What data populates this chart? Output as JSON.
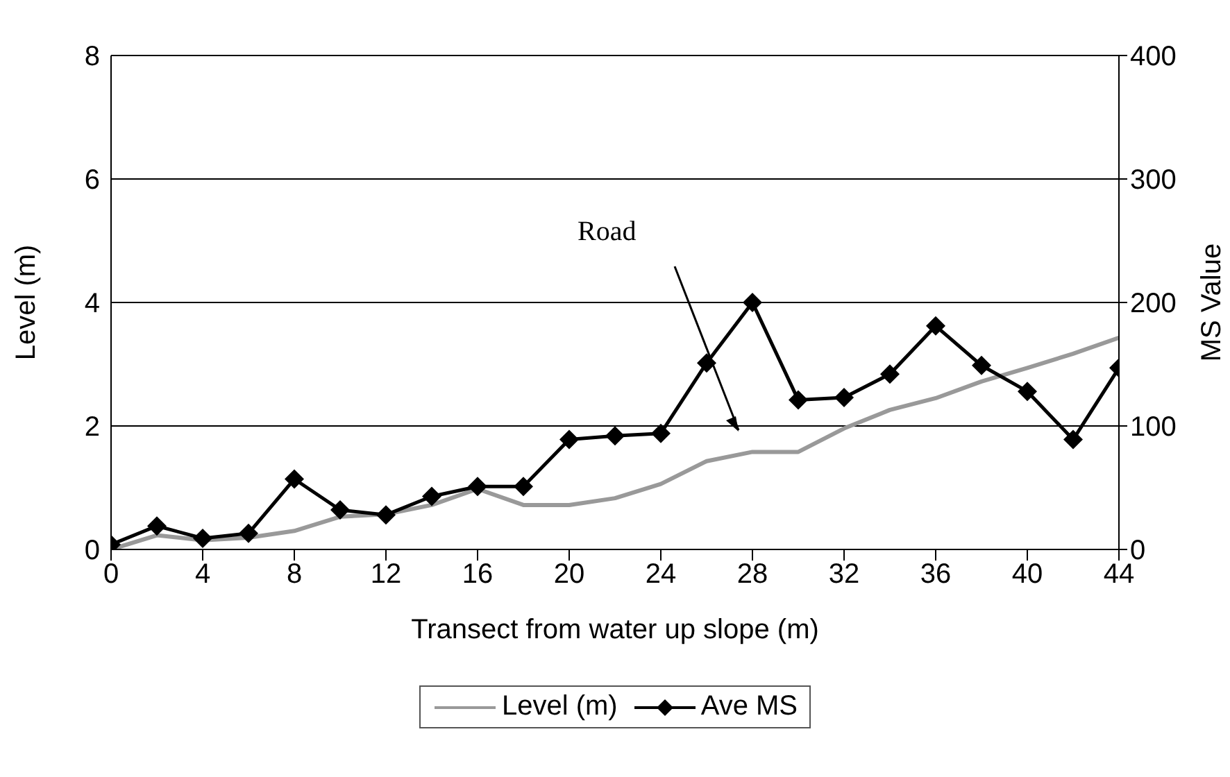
{
  "chart_data": {
    "type": "line",
    "xlabel": "Transect from water up slope (m)",
    "ylabel": "Level (m)",
    "y2label": "MS Value",
    "x": [
      0,
      2,
      4,
      6,
      8,
      10,
      12,
      14,
      16,
      18,
      20,
      22,
      24,
      26,
      28,
      30,
      32,
      34,
      36,
      38,
      40,
      42,
      44
    ],
    "series": [
      {
        "name": "Level (m)",
        "color": "#999999",
        "marker": "none",
        "values": [
          0,
          0.23,
          0.15,
          0.19,
          0.3,
          0.53,
          0.57,
          0.72,
          0.98,
          0.72,
          0.72,
          0.83,
          1.06,
          1.43,
          1.58,
          1.58,
          1.96,
          2.26,
          2.45,
          2.72,
          2.94,
          3.17,
          3.43
        ]
      },
      {
        "name": "Ave MS",
        "color": "#000000",
        "marker": "diamond",
        "axis": "y2",
        "values": [
          4,
          19,
          9,
          13,
          57,
          32,
          28,
          43,
          51,
          51,
          89,
          92,
          94,
          151,
          200,
          121,
          123,
          142,
          181,
          149,
          128,
          89,
          147
        ]
      }
    ],
    "xlim": [
      0,
      44
    ],
    "xticks": [
      0,
      4,
      8,
      12,
      16,
      20,
      24,
      28,
      32,
      36,
      40,
      44
    ],
    "ylim": [
      0,
      8
    ],
    "yticks": [
      0,
      2,
      4,
      6,
      8
    ],
    "y2lim": [
      0,
      400
    ],
    "y2ticks": [
      0,
      100,
      200,
      300,
      400
    ],
    "grid": "y",
    "legend": "bottom",
    "annotations": [
      "Road"
    ]
  }
}
